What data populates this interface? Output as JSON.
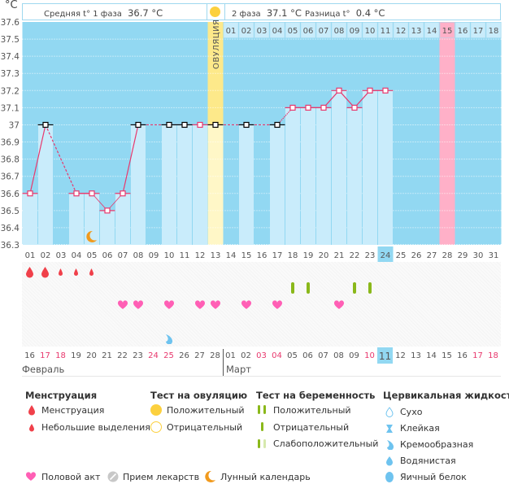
{
  "header": {
    "unit": "°C",
    "phase1_label": "Средняя t° 1 фаза",
    "phase1_value": "36.7 °C",
    "phase2_label": "2 фаза",
    "phase2_value": "37.1 °C",
    "diff_label": "Разница t°",
    "diff_value": "0.4 °C",
    "ovulation_label": "ОВУЛЯЦИЯ"
  },
  "colors": {
    "chart_bg": "#92d8f2",
    "bar_light": "#c9ecfb",
    "ovulation_col": "#fff7c7",
    "ovulation_top": "#fde98a",
    "pink_col": "#ffb0c8",
    "line": "#e8386d",
    "marker_excluded": "#000000",
    "menstruation": "#f0404a",
    "heart": "#ff5fb5",
    "pregnancy_test": "#8ab81a",
    "fluid": "#6ec3ef",
    "moon": "#f19a1d",
    "weekend": "#e8386d",
    "today_bg": "#92d8f2"
  },
  "chart_data": {
    "type": "line",
    "title": "",
    "ylabel": "°C",
    "ylim": [
      36.3,
      37.6
    ],
    "yticks": [
      "37.6",
      "37.5",
      "37.4",
      "37.3",
      "37.2",
      "37.1",
      "37",
      "36.9",
      "36.8",
      "36.7",
      "36.6",
      "36.5",
      "36.4",
      "36.3"
    ],
    "cycle_days": [
      "01",
      "02",
      "03",
      "04",
      "05",
      "06",
      "07",
      "08",
      "09",
      "10",
      "11",
      "12",
      "13",
      "14",
      "15",
      "16",
      "17",
      "18",
      "19",
      "20",
      "21",
      "22",
      "23",
      "24",
      "25",
      "26",
      "27",
      "28",
      "29",
      "30",
      "31"
    ],
    "phase2_days": [
      "01",
      "02",
      "03",
      "04",
      "05",
      "06",
      "07",
      "08",
      "09",
      "10",
      "11",
      "12",
      "13",
      "14",
      "15",
      "16",
      "17",
      "18"
    ],
    "ovulation_day": 13,
    "highlight_day": 28,
    "today_cycle_day": 24,
    "series": [
      {
        "name": "BBT",
        "points": [
          {
            "day": 1,
            "temp": 36.6,
            "excluded": false
          },
          {
            "day": 2,
            "temp": 37.0,
            "excluded": true
          },
          {
            "day": 4,
            "temp": 36.6,
            "excluded": false
          },
          {
            "day": 5,
            "temp": 36.6,
            "excluded": false
          },
          {
            "day": 6,
            "temp": 36.5,
            "excluded": false
          },
          {
            "day": 7,
            "temp": 36.6,
            "excluded": false
          },
          {
            "day": 8,
            "temp": 37.0,
            "excluded": true
          },
          {
            "day": 10,
            "temp": 37.0,
            "excluded": true
          },
          {
            "day": 11,
            "temp": 37.0,
            "excluded": true
          },
          {
            "day": 12,
            "temp": 37.0,
            "excluded": false
          },
          {
            "day": 13,
            "temp": 37.0,
            "excluded": true
          },
          {
            "day": 15,
            "temp": 37.0,
            "excluded": true
          },
          {
            "day": 17,
            "temp": 37.0,
            "excluded": true
          },
          {
            "day": 18,
            "temp": 37.1,
            "excluded": false
          },
          {
            "day": 19,
            "temp": 37.1,
            "excluded": false
          },
          {
            "day": 20,
            "temp": 37.1,
            "excluded": false
          },
          {
            "day": 21,
            "temp": 37.2,
            "excluded": false
          },
          {
            "day": 22,
            "temp": 37.1,
            "excluded": false
          },
          {
            "day": 23,
            "temp": 37.2,
            "excluded": false
          },
          {
            "day": 24,
            "temp": 37.2,
            "excluded": false
          }
        ]
      }
    ],
    "moon_day": 5
  },
  "markers": {
    "menstruation_heavy": [
      1,
      2
    ],
    "menstruation_light": [
      3,
      4,
      5
    ],
    "pregnancy_negative": [
      18,
      19,
      22,
      23
    ],
    "intercourse": [
      7,
      8,
      10,
      12,
      13,
      15,
      17,
      21
    ],
    "cervical_creamy": [
      10
    ]
  },
  "calendar": {
    "dates": [
      {
        "d": "16",
        "w": false
      },
      {
        "d": "17",
        "w": true
      },
      {
        "d": "18",
        "w": true
      },
      {
        "d": "19",
        "w": false
      },
      {
        "d": "20",
        "w": false
      },
      {
        "d": "21",
        "w": false
      },
      {
        "d": "22",
        "w": false
      },
      {
        "d": "23",
        "w": false
      },
      {
        "d": "24",
        "w": true
      },
      {
        "d": "25",
        "w": true
      },
      {
        "d": "26",
        "w": false
      },
      {
        "d": "27",
        "w": false
      },
      {
        "d": "28",
        "w": false
      },
      {
        "d": "01",
        "w": false
      },
      {
        "d": "02",
        "w": false
      },
      {
        "d": "03",
        "w": true
      },
      {
        "d": "04",
        "w": true
      },
      {
        "d": "05",
        "w": false
      },
      {
        "d": "06",
        "w": false
      },
      {
        "d": "07",
        "w": false
      },
      {
        "d": "08",
        "w": false
      },
      {
        "d": "09",
        "w": false
      },
      {
        "d": "10",
        "w": true
      },
      {
        "d": "11",
        "w": false
      },
      {
        "d": "12",
        "w": false
      },
      {
        "d": "13",
        "w": false
      },
      {
        "d": "14",
        "w": false
      },
      {
        "d": "15",
        "w": false
      },
      {
        "d": "16",
        "w": false
      },
      {
        "d": "17",
        "w": true
      },
      {
        "d": "18",
        "w": true
      }
    ],
    "month1": "Февраль",
    "month2": "Март",
    "today_index": 24
  },
  "legend": {
    "menstruation": {
      "title": "Менструация",
      "items": [
        "Менструация",
        "Небольшие выделения"
      ]
    },
    "ovulation_test": {
      "title": "Тест на овуляцию",
      "items": [
        "Положительный",
        "Отрицательный"
      ]
    },
    "pregnancy_test": {
      "title": "Тест на беременность",
      "items": [
        "Положительный",
        "Отрицательный",
        "Слабоположительный"
      ]
    },
    "cervical_fluid": {
      "title": "Цервикальная жидкость",
      "items": [
        "Сухо",
        "Клейкая",
        "Кремообразная",
        "Водянистая",
        "Яичный белок"
      ]
    },
    "other": [
      "Половой акт",
      "Прием лекарств",
      "Лунный календарь"
    ]
  }
}
